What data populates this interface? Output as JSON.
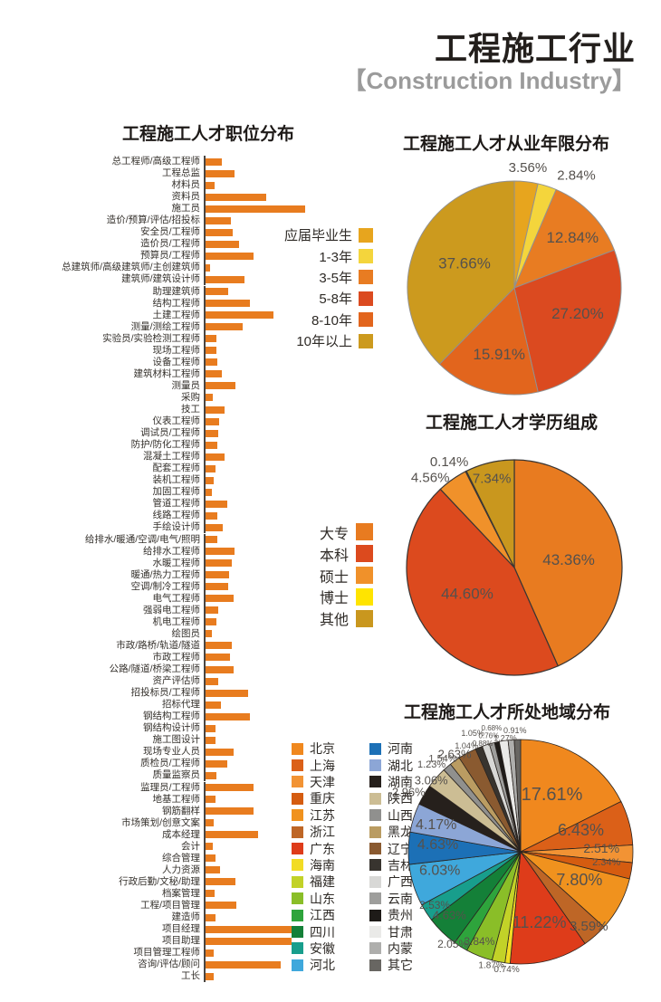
{
  "header": {
    "title": "工程施工行业",
    "subtitle": "【Construction Industry】"
  },
  "chart_data": [
    {
      "id": "positions",
      "type": "bar",
      "orientation": "horizontal",
      "title": "工程施工人才职位分布",
      "bar_color": "#E87C1F",
      "axis_values_shown": false,
      "note": "values are relative bar lengths estimated from pixels, max = 110",
      "categories": [
        "总工程师/高级工程师",
        "工程总监",
        "材料员",
        "资料员",
        "施工员",
        "造价/预算/评估/招投标",
        "安全员/工程师",
        "造价员/工程师",
        "预算员/工程师",
        "总建筑师/高级建筑师/主创建筑师",
        "建筑师/建筑设计师",
        "助理建筑师",
        "结构工程师",
        "土建工程师",
        "测量/测绘工程师",
        "实验员/实验检测工程师",
        "现场工程师",
        "设备工程师",
        "建筑材料工程师",
        "测量员",
        "采购",
        "技工",
        "仪表工程师",
        "调试员/工程师",
        "防护/防化工程师",
        "混凝土工程师",
        "配套工程师",
        "装机工程师",
        "加固工程师",
        "管道工程师",
        "线路工程师",
        "手绘设计师",
        "给排水/暖通/空调/电气/照明",
        "给排水工程师",
        "水暖工程师",
        "暖通/热力工程师",
        "空调/制冷工程师",
        "电气工程师",
        "强弱电工程师",
        "机电工程师",
        "绘图员",
        "市政/路桥/轨道/隧道",
        "市政工程师",
        "公路/隧道/桥梁工程师",
        "资产评估师",
        "招投标员/工程师",
        "招标代理",
        "钢结构工程师",
        "钢结构设计师",
        "施工图设计",
        "现场专业人员",
        "质检员/工程师",
        "质量监察员",
        "监理员/工程师",
        "地基工程师",
        "钢筋翻样",
        "市场策划/创意文案",
        "成本经理",
        "会计",
        "综合管理",
        "人力资源",
        "行政后勤/文秘/助理",
        "档案管理",
        "工程/项目管理",
        "建造师",
        "项目经理",
        "项目助理",
        "项目管理工程师",
        "咨询/评估/顾问",
        "工长"
      ],
      "values": [
        18,
        32,
        10,
        67,
        110,
        28,
        30,
        37,
        53,
        5,
        43,
        25,
        49,
        75,
        41,
        12,
        12,
        13,
        18,
        33,
        8,
        21,
        15,
        14,
        13,
        21,
        11,
        9,
        7,
        24,
        13,
        19,
        13,
        32,
        29,
        26,
        25,
        31,
        14,
        12,
        7,
        29,
        27,
        31,
        14,
        47,
        17,
        49,
        11,
        11,
        31,
        24,
        12,
        53,
        11,
        53,
        9,
        58,
        8,
        11,
        16,
        33,
        10,
        34,
        11,
        103,
        95,
        9,
        83,
        9
      ]
    },
    {
      "id": "experience",
      "type": "pie",
      "title": "工程施工人才从业年限分布",
      "legend_position": "left",
      "start_angle": "top, clockwise",
      "labels": [
        "应届毕业生",
        "1-3年",
        "3-5年",
        "5-8年",
        "8-10年",
        "10年以上"
      ],
      "values": [
        3.56,
        2.84,
        12.84,
        27.2,
        15.91,
        37.66
      ],
      "colors": [
        "#E7A51E",
        "#F4D53C",
        "#E87C22",
        "#DB4A20",
        "#E2651D",
        "#CC9A1E"
      ],
      "label_layout": [
        [
          1.13,
          0,
          15
        ],
        [
          1.2,
          11,
          15
        ],
        [
          0.72,
          3,
          17
        ],
        [
          0.64,
          -6,
          17
        ],
        [
          0.64,
          -3,
          17
        ],
        [
          0.52,
          4,
          17
        ]
      ],
      "stroke": "#919191",
      "stroke_width": 1
    },
    {
      "id": "education",
      "type": "pie",
      "title": "工程施工人才学历组成",
      "legend_position": "left",
      "start_angle": "top, clockwise",
      "labels": [
        "大专",
        "本科",
        "硕士",
        "博士",
        "其他"
      ],
      "values": [
        43.36,
        44.6,
        4.56,
        0.14,
        7.34
      ],
      "colors": [
        "#E87B20",
        "#DC4A1E",
        "#F0912A",
        "#FFE400",
        "#C9971E"
      ],
      "label_layout": [
        [
          0.51,
          4,
          17
        ],
        [
          0.5,
          4.5,
          17
        ],
        [
          1.14,
          -8,
          15
        ],
        [
          1.15,
          -5,
          15
        ],
        [
          0.85,
          -1,
          15
        ]
      ],
      "stroke": "#3A3634",
      "stroke_width": 1.2
    },
    {
      "id": "region",
      "type": "pie",
      "title": "工程施工人才所处地域分布",
      "legend_position": "left, two columns",
      "start_angle": "top, clockwise",
      "labels": [
        "北京",
        "上海",
        "天津",
        "重庆",
        "江苏",
        "浙江",
        "广东",
        "海南",
        "福建",
        "山东",
        "江西",
        "四川",
        "安徽",
        "河北",
        "河南",
        "湖北",
        "湖南",
        "陕西",
        "山西",
        "黑龙江",
        "辽宁",
        "吉林",
        "广西",
        "云南",
        "贵州",
        "甘肃",
        "内蒙",
        "其它"
      ],
      "values": [
        17.61,
        6.43,
        2.51,
        2.34,
        7.8,
        3.59,
        11.22,
        0.74,
        1.87,
        3.84,
        2.05,
        4.63,
        2.53,
        6.03,
        4.63,
        4.17,
        2.96,
        3.06,
        1.23,
        1.54,
        2.63,
        1.04,
        1.05,
        0.76,
        0.68,
        1.27,
        0.88,
        0.91
      ],
      "colors": [
        "#F0881E",
        "#DB6018",
        "#F29334",
        "#D55C10",
        "#F0921E",
        "#BE6626",
        "#DE3C1A",
        "#F2DC24",
        "#C2D228",
        "#8ABE28",
        "#2EA43C",
        "#148038",
        "#189E8C",
        "#3FA8DC",
        "#1C70B6",
        "#8CA6D6",
        "#26201C",
        "#CCBD94",
        "#90908E",
        "#BA9C62",
        "#8A5A30",
        "#38342F",
        "#D8D8D6",
        "#9E9E9C",
        "#1E1B18",
        "#EAEAE8",
        "#AEAEAC",
        "#686662"
      ],
      "label_layout": [
        [
          0.58,
          -3,
          20
        ],
        [
          0.57,
          -4.7,
          18
        ],
        [
          0.72,
          -3.7,
          14
        ],
        [
          0.77,
          -2.6,
          11
        ],
        [
          0.58,
          -2.5,
          18
        ],
        [
          0.9,
          -1,
          15
        ],
        [
          0.65,
          0,
          18
        ],
        [
          1.06,
          0,
          10
        ],
        [
          1.05,
          3,
          10
        ],
        [
          0.88,
          3,
          12
        ],
        [
          1.02,
          4,
          12
        ],
        [
          0.85,
          4,
          13
        ],
        [
          0.9,
          1,
          12
        ],
        [
          0.74,
          4,
          16
        ],
        [
          0.74,
          3,
          16
        ],
        [
          0.79,
          0,
          16
        ],
        [
          1.13,
          -2.5,
          13
        ],
        [
          1.02,
          -2.7,
          13
        ],
        [
          1.11,
          -4.7,
          11
        ],
        [
          1.08,
          -4,
          11
        ],
        [
          1.05,
          -5.6,
          13
        ],
        [
          1.06,
          -5.2,
          9
        ],
        [
          1.14,
          -3.9,
          9
        ],
        [
          1.07,
          -0.5,
          8
        ],
        [
          1.13,
          -1,
          8
        ],
        [
          1.02,
          1,
          9
        ],
        [
          1.02,
          -14.5,
          8
        ],
        [
          1.08,
          -1,
          9
        ]
      ],
      "stroke": "#2A2420",
      "stroke_width": 0.8
    }
  ]
}
